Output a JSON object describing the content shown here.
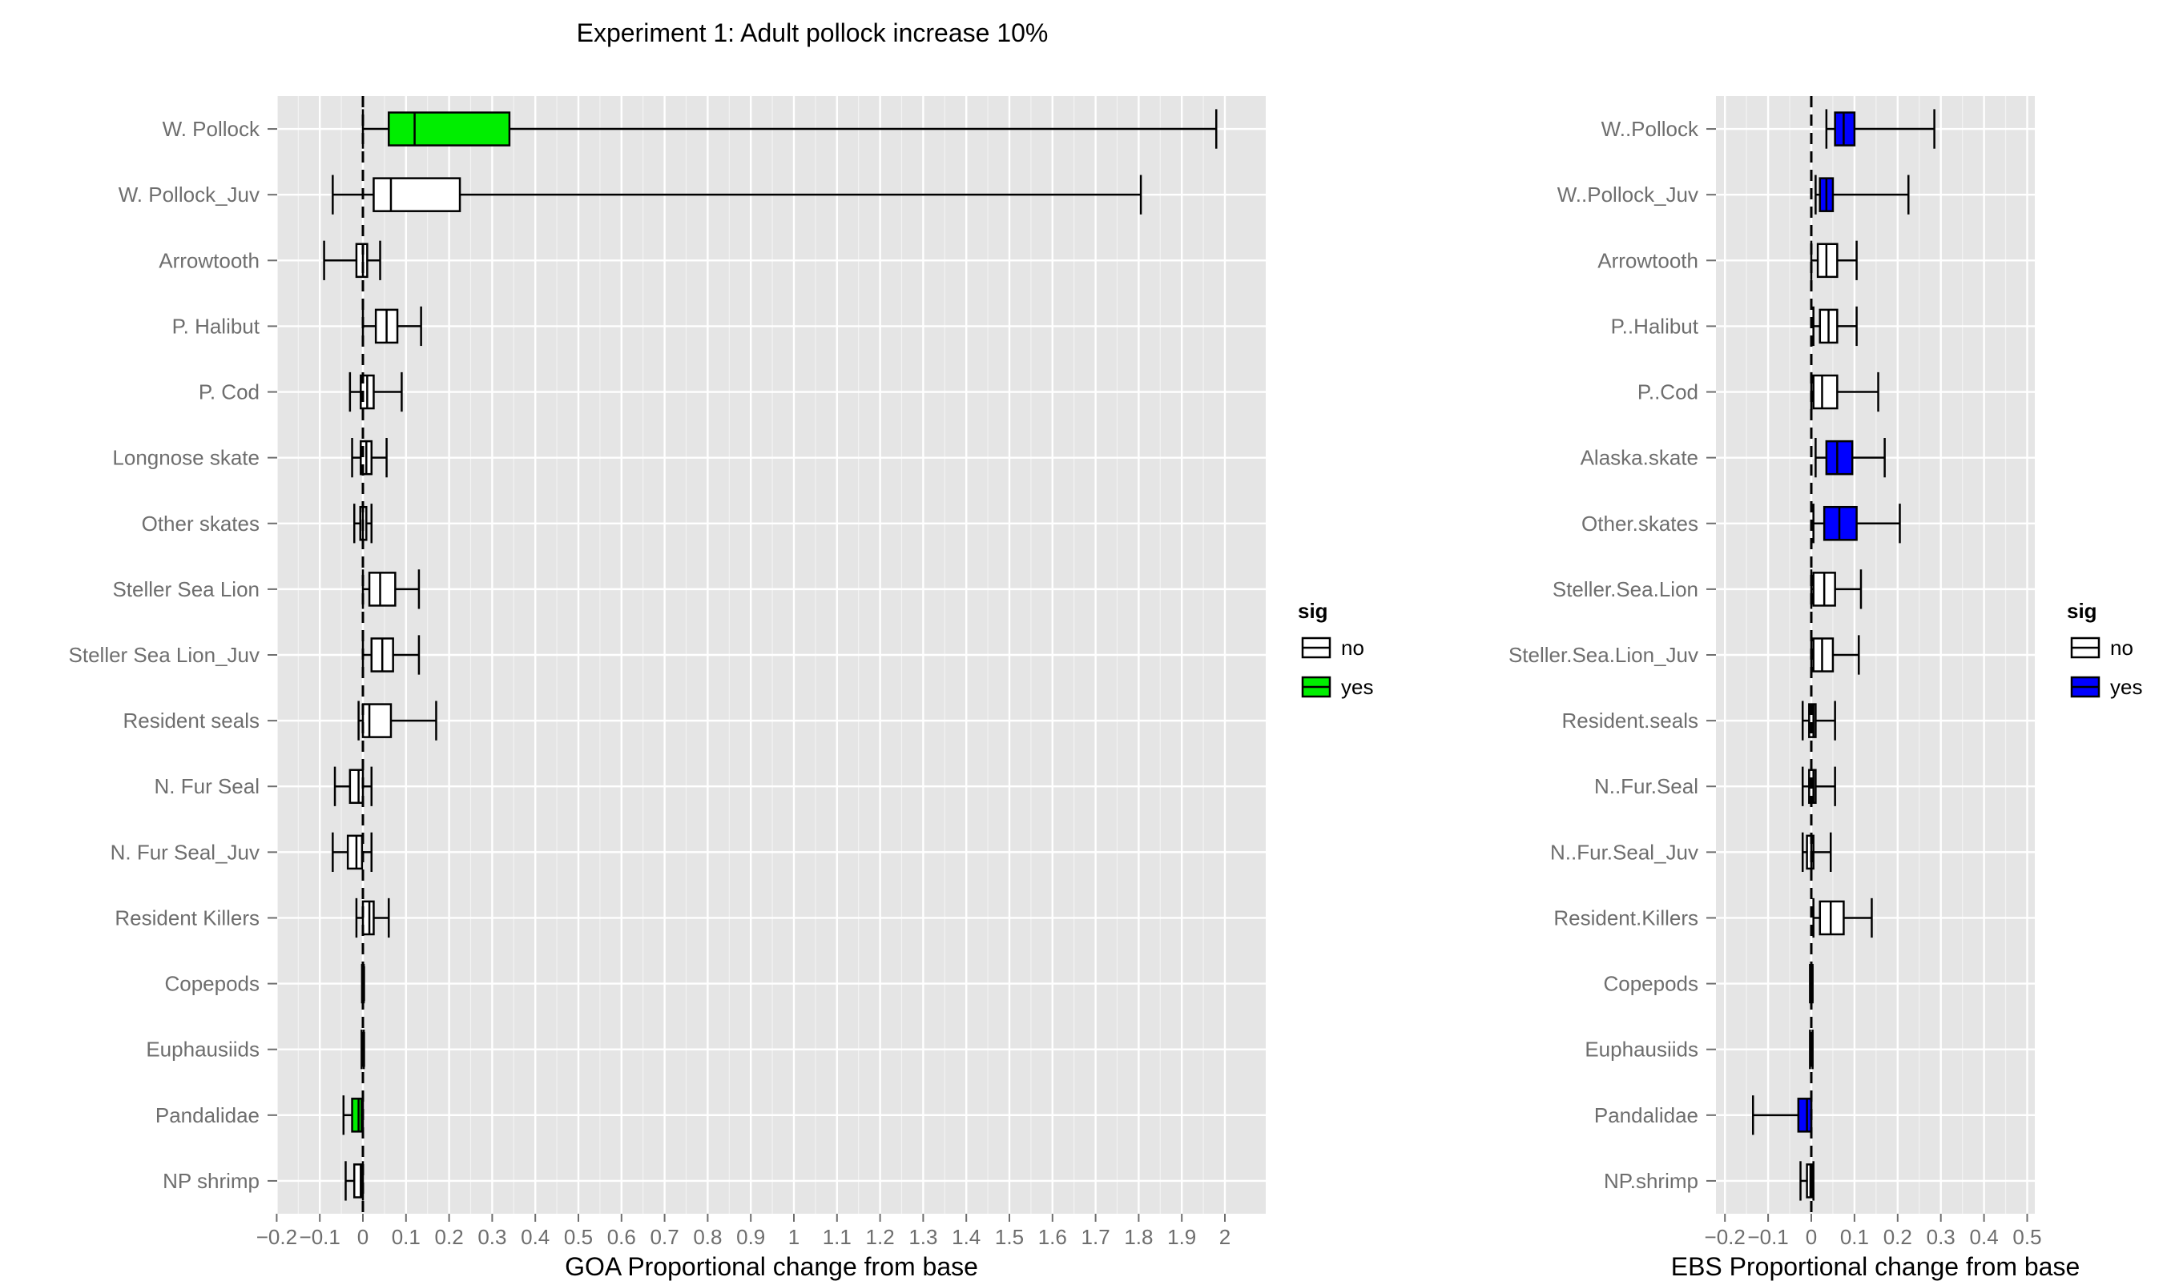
{
  "title": "Experiment 1: Adult pollock increase 10%",
  "legend": {
    "title": "sig",
    "entries": [
      {
        "label": "no"
      },
      {
        "label": "yes"
      }
    ]
  },
  "colors": {
    "panel_bg": "#e5e5e5",
    "grid": "#ffffff",
    "no_fill": "#ffffff",
    "goa_yes_fill": "#00ee00",
    "ebs_yes_fill": "#0000ff",
    "axis_text": "#6e6e6e",
    "stroke": "#000000"
  },
  "chart_data": [
    {
      "type": "boxplot",
      "orientation": "horizontal",
      "xlabel": "GOA Proportional change from base",
      "ylabel": "",
      "xlim": [
        -0.2,
        2.1
      ],
      "xticks": [
        -0.2,
        -0.1,
        0,
        0.1,
        0.2,
        0.3,
        0.4,
        0.5,
        0.6,
        0.7,
        0.8,
        0.9,
        1,
        1.1,
        1.2,
        1.3,
        1.4,
        1.5,
        1.6,
        1.7,
        1.8,
        1.9,
        2
      ],
      "xtick_labels": [
        "−0.2",
        "−0.1",
        "0",
        "0.1",
        "0.2",
        "0.3",
        "0.4",
        "0.5",
        "0.6",
        "0.7",
        "0.8",
        "0.9",
        "1",
        "1.1",
        "1.2",
        "1.3",
        "1.4",
        "1.5",
        "1.6",
        "1.7",
        "1.8",
        "1.9",
        "2"
      ],
      "reference_line_x": 0,
      "yes_color": "#00ee00",
      "legend_placement": "right",
      "grid": true,
      "categories": [
        "W. Pollock",
        "W. Pollock_Juv",
        "Arrowtooth",
        "P. Halibut",
        "P. Cod",
        "Longnose skate",
        "Other skates",
        "Steller Sea Lion",
        "Steller Sea Lion_Juv",
        "Resident seals",
        "N. Fur Seal",
        "N. Fur Seal_Juv",
        "Resident Killers",
        "Copepods",
        "Euphausiids",
        "Pandalidae",
        "NP shrimp"
      ],
      "boxes": [
        {
          "whisker_low": 0.0,
          "q1": 0.06,
          "median": 0.12,
          "q3": 0.34,
          "whisker_high": 1.98,
          "sig": "yes"
        },
        {
          "whisker_low": -0.07,
          "q1": 0.025,
          "median": 0.065,
          "q3": 0.225,
          "whisker_high": 1.805,
          "sig": "no"
        },
        {
          "whisker_low": -0.09,
          "q1": -0.015,
          "median": 0.0,
          "q3": 0.01,
          "whisker_high": 0.04,
          "sig": "no"
        },
        {
          "whisker_low": 0.0,
          "q1": 0.03,
          "median": 0.055,
          "q3": 0.08,
          "whisker_high": 0.135,
          "sig": "no"
        },
        {
          "whisker_low": -0.03,
          "q1": -0.005,
          "median": 0.01,
          "q3": 0.025,
          "whisker_high": 0.09,
          "sig": "no"
        },
        {
          "whisker_low": -0.025,
          "q1": -0.005,
          "median": 0.008,
          "q3": 0.02,
          "whisker_high": 0.055,
          "sig": "no"
        },
        {
          "whisker_low": -0.02,
          "q1": -0.006,
          "median": 0.0,
          "q3": 0.008,
          "whisker_high": 0.02,
          "sig": "no"
        },
        {
          "whisker_low": 0.0,
          "q1": 0.015,
          "median": 0.04,
          "q3": 0.075,
          "whisker_high": 0.13,
          "sig": "no"
        },
        {
          "whisker_low": 0.0,
          "q1": 0.02,
          "median": 0.045,
          "q3": 0.07,
          "whisker_high": 0.13,
          "sig": "no"
        },
        {
          "whisker_low": -0.01,
          "q1": 0.0,
          "median": 0.015,
          "q3": 0.065,
          "whisker_high": 0.17,
          "sig": "no"
        },
        {
          "whisker_low": -0.065,
          "q1": -0.03,
          "median": -0.01,
          "q3": 0.0,
          "whisker_high": 0.02,
          "sig": "no"
        },
        {
          "whisker_low": -0.07,
          "q1": -0.035,
          "median": -0.015,
          "q3": -0.002,
          "whisker_high": 0.02,
          "sig": "no"
        },
        {
          "whisker_low": -0.015,
          "q1": 0.0,
          "median": 0.015,
          "q3": 0.025,
          "whisker_high": 0.06,
          "sig": "no"
        },
        {
          "whisker_low": -0.002,
          "q1": -0.001,
          "median": 0.0,
          "q3": 0.001,
          "whisker_high": 0.002,
          "sig": "no"
        },
        {
          "whisker_low": -0.003,
          "q1": -0.001,
          "median": 0.0,
          "q3": 0.001,
          "whisker_high": 0.002,
          "sig": "no"
        },
        {
          "whisker_low": -0.045,
          "q1": -0.025,
          "median": -0.01,
          "q3": -0.003,
          "whisker_high": 0.0,
          "sig": "yes"
        },
        {
          "whisker_low": -0.04,
          "q1": -0.02,
          "median": -0.005,
          "q3": -0.003,
          "whisker_high": 0.0,
          "sig": "no"
        }
      ]
    },
    {
      "type": "boxplot",
      "orientation": "horizontal",
      "xlabel": "EBS Proportional change from base",
      "ylabel": "",
      "xlim": [
        -0.23,
        0.53
      ],
      "xticks": [
        -0.2,
        -0.1,
        0,
        0.1,
        0.2,
        0.3,
        0.4,
        0.5
      ],
      "xtick_labels": [
        "−0.2",
        "−0.1",
        "0",
        "0.1",
        "0.2",
        "0.3",
        "0.4",
        "0.5"
      ],
      "reference_line_x": 0,
      "yes_color": "#0000ff",
      "legend_placement": "right",
      "grid": true,
      "categories": [
        "W..Pollock",
        "W..Pollock_Juv",
        "Arrowtooth",
        "P..Halibut",
        "P..Cod",
        "Alaska.skate",
        "Other.skates",
        "Steller.Sea.Lion",
        "Steller.Sea.Lion_Juv",
        "Resident.seals",
        "N..Fur.Seal",
        "N..Fur.Seal_Juv",
        "Resident.Killers",
        "Copepods",
        "Euphausiids",
        "Pandalidae",
        "NP.shrimp"
      ],
      "boxes": [
        {
          "whisker_low": 0.035,
          "q1": 0.055,
          "median": 0.075,
          "q3": 0.1,
          "whisker_high": 0.285,
          "sig": "yes"
        },
        {
          "whisker_low": 0.01,
          "q1": 0.02,
          "median": 0.035,
          "q3": 0.05,
          "whisker_high": 0.225,
          "sig": "yes"
        },
        {
          "whisker_low": 0.0,
          "q1": 0.015,
          "median": 0.035,
          "q3": 0.06,
          "whisker_high": 0.105,
          "sig": "no"
        },
        {
          "whisker_low": 0.005,
          "q1": 0.02,
          "median": 0.04,
          "q3": 0.06,
          "whisker_high": 0.105,
          "sig": "no"
        },
        {
          "whisker_low": 0.0,
          "q1": 0.005,
          "median": 0.025,
          "q3": 0.06,
          "whisker_high": 0.155,
          "sig": "no"
        },
        {
          "whisker_low": 0.01,
          "q1": 0.035,
          "median": 0.06,
          "q3": 0.095,
          "whisker_high": 0.17,
          "sig": "yes"
        },
        {
          "whisker_low": 0.005,
          "q1": 0.03,
          "median": 0.065,
          "q3": 0.105,
          "whisker_high": 0.205,
          "sig": "yes"
        },
        {
          "whisker_low": 0.0,
          "q1": 0.005,
          "median": 0.03,
          "q3": 0.055,
          "whisker_high": 0.115,
          "sig": "no"
        },
        {
          "whisker_low": 0.0,
          "q1": 0.005,
          "median": 0.025,
          "q3": 0.05,
          "whisker_high": 0.11,
          "sig": "no"
        },
        {
          "whisker_low": -0.02,
          "q1": -0.005,
          "median": 0.005,
          "q3": 0.01,
          "whisker_high": 0.055,
          "sig": "no"
        },
        {
          "whisker_low": -0.02,
          "q1": -0.005,
          "median": 0.005,
          "q3": 0.01,
          "whisker_high": 0.055,
          "sig": "no"
        },
        {
          "whisker_low": -0.02,
          "q1": -0.01,
          "median": 0.0,
          "q3": 0.005,
          "whisker_high": 0.045,
          "sig": "no"
        },
        {
          "whisker_low": 0.005,
          "q1": 0.02,
          "median": 0.045,
          "q3": 0.075,
          "whisker_high": 0.14,
          "sig": "no"
        },
        {
          "whisker_low": -0.003,
          "q1": -0.001,
          "median": 0.0,
          "q3": 0.001,
          "whisker_high": 0.003,
          "sig": "no"
        },
        {
          "whisker_low": -0.003,
          "q1": -0.001,
          "median": 0.0,
          "q3": 0.001,
          "whisker_high": 0.003,
          "sig": "no"
        },
        {
          "whisker_low": -0.135,
          "q1": -0.03,
          "median": -0.01,
          "q3": 0.0,
          "whisker_high": 0.0,
          "sig": "yes"
        },
        {
          "whisker_low": -0.025,
          "q1": -0.01,
          "median": -0.002,
          "q3": 0.002,
          "whisker_high": 0.005,
          "sig": "no"
        }
      ]
    }
  ]
}
